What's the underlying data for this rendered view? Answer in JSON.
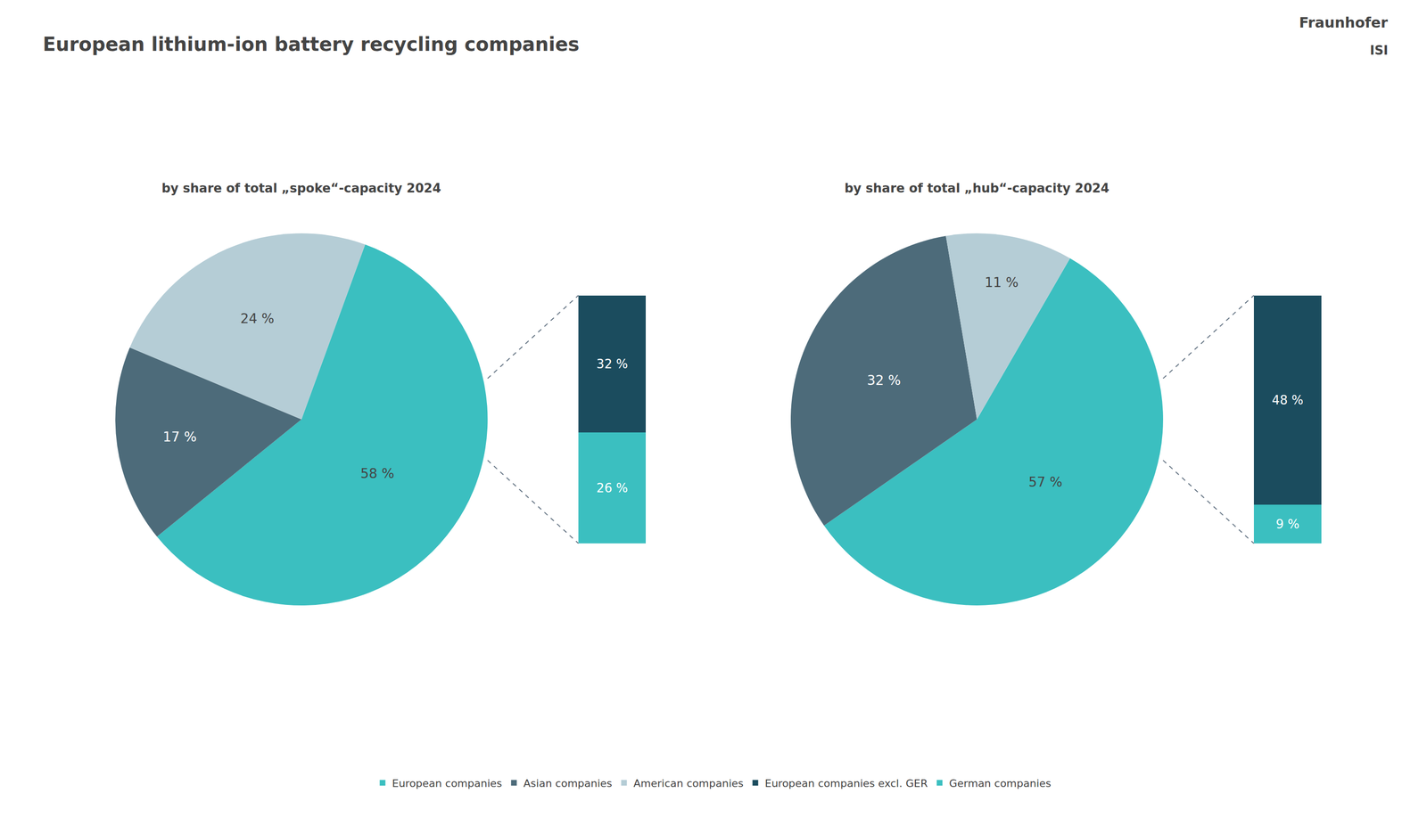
{
  "chart_data": [
    {
      "type": "pie",
      "title": "European lithium-ion battery recycling companies",
      "subtitle": "by share of total „spoke“-capacity 2024",
      "categories": [
        "European companies",
        "Asian companies",
        "American companies"
      ],
      "values": [
        58,
        17,
        24
      ],
      "value_labels": [
        "58 %",
        "17 %",
        "24 %"
      ],
      "colors": [
        "#3bbfc0",
        "#4d6b7a",
        "#b5cdd6"
      ],
      "data_labels": true,
      "legend": "bottom",
      "annotations": [
        "Fraunhofer",
        "ISI"
      ]
    },
    {
      "type": "bar",
      "stacked": true,
      "categories": [
        null
      ],
      "series": [
        {
          "name": "European companies excl. GER",
          "color": "#1b4c5e",
          "values": [
            32
          ],
          "value_labels": [
            "32 %"
          ]
        },
        {
          "name": "German companies",
          "color": "#3bbfc0",
          "values": [
            26
          ],
          "value_labels": [
            "26 %"
          ]
        }
      ],
      "ylim": [
        0,
        58
      ],
      "data_labels": true,
      "tick_labels": false
    },
    {
      "type": "pie",
      "subtitle": "by share of total „hub“-capacity 2024",
      "categories": [
        "European companies",
        "Asian companies",
        "American companies"
      ],
      "values": [
        57,
        32,
        11
      ],
      "value_labels": [
        "57 %",
        "32 %",
        "11 %"
      ],
      "colors": [
        "#3bbfc0",
        "#4d6b7a",
        "#b5cdd6"
      ],
      "data_labels": true
    },
    {
      "type": "bar",
      "stacked": true,
      "categories": [
        null
      ],
      "series": [
        {
          "name": "European companies excl. GER",
          "color": "#1b4c5e",
          "values": [
            48
          ],
          "value_labels": [
            "48 %"
          ]
        },
        {
          "name": "German companies",
          "color": "#3bbfc0",
          "values": [
            9
          ],
          "value_labels": [
            "9 %"
          ]
        }
      ],
      "ylim": [
        0,
        57
      ],
      "data_labels": true,
      "tick_labels": false
    }
  ]
}
